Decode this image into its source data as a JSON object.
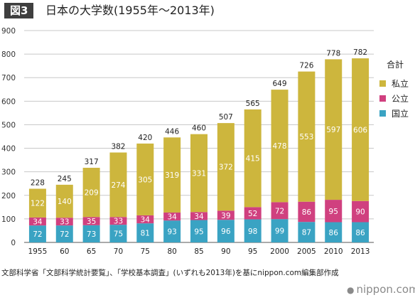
{
  "header": {
    "figure_label": "図3",
    "title": "日本の大学数(1955年〜2013年)"
  },
  "colors": {
    "private": "#cdb63d",
    "public": "#d0407f",
    "national": "#3aa3c3",
    "grid": "#c8c8c8",
    "axis": "#555555"
  },
  "chart_data": {
    "type": "bar",
    "stacked": true,
    "categories": [
      "1955",
      "60",
      "65",
      "70",
      "75",
      "80",
      "85",
      "90",
      "95",
      "2000",
      "2005",
      "2010",
      "2013"
    ],
    "series": [
      {
        "name": "国立",
        "key": "national",
        "values": [
          72,
          72,
          73,
          75,
          81,
          93,
          95,
          96,
          98,
          99,
          87,
          86,
          86
        ]
      },
      {
        "name": "公立",
        "key": "public",
        "values": [
          34,
          33,
          35,
          33,
          34,
          34,
          34,
          39,
          52,
          72,
          86,
          95,
          90
        ]
      },
      {
        "name": "私立",
        "key": "private",
        "values": [
          122,
          140,
          209,
          274,
          305,
          319,
          331,
          372,
          415,
          478,
          553,
          597,
          606
        ]
      }
    ],
    "totals": [
      228,
      245,
      317,
      382,
      420,
      446,
      460,
      507,
      565,
      649,
      726,
      778,
      782
    ],
    "yticks": [
      0,
      100,
      200,
      300,
      400,
      500,
      600,
      700,
      800,
      900
    ],
    "ylim": [
      0,
      900
    ],
    "grid": true,
    "legend_position": "right",
    "legend_title": "合計"
  },
  "footer": {
    "source": "文部科学省「文部科学統計要覧」、「学校基本調査」(いずれも2013年)を基にnippon.com編集部作成",
    "brand_dot": "●",
    "brand": "nippon.com"
  }
}
